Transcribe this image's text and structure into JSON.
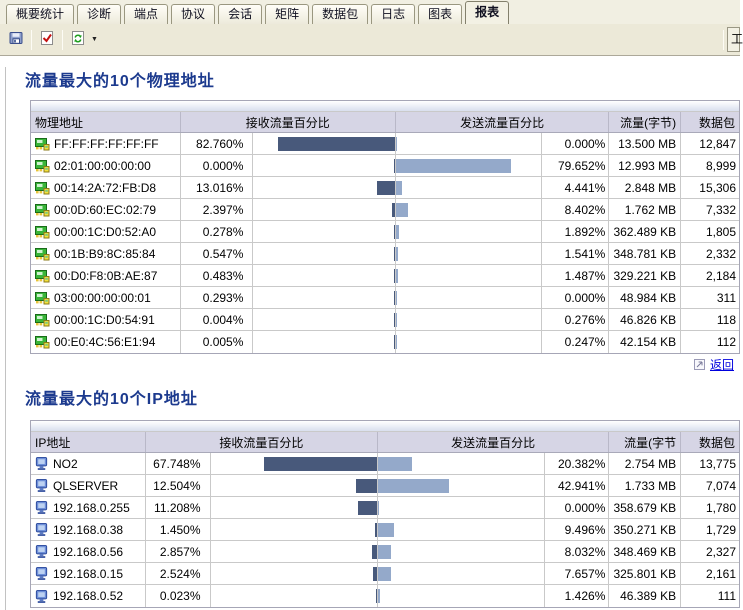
{
  "tabs": [
    {
      "label": "概要统计",
      "name": "summary"
    },
    {
      "label": "诊断",
      "name": "diagnosis"
    },
    {
      "label": "端点",
      "name": "endpoint"
    },
    {
      "label": "协议",
      "name": "protocol"
    },
    {
      "label": "会话",
      "name": "conversation"
    },
    {
      "label": "矩阵",
      "name": "matrix"
    },
    {
      "label": "数据包",
      "name": "packet"
    },
    {
      "label": "日志",
      "name": "log"
    },
    {
      "label": "图表",
      "name": "chart"
    },
    {
      "label": "报表",
      "name": "report"
    }
  ],
  "active_tab": "report",
  "toolbar": {
    "buttons": [
      {
        "name": "save-report-button",
        "icon": "save-icon"
      },
      {
        "name": "check-report-button",
        "icon": "check-icon"
      },
      {
        "name": "refresh-report-button",
        "icon": "refresh-icon",
        "has_dropdown": true
      }
    ],
    "overflow_button_label": "工"
  },
  "colors": {
    "recv_bar": "#48597B",
    "send_bar": "#94A9CA",
    "section_title": "#1C3A8E",
    "header_bg": "#D6D5E5",
    "toolbar_bg": "#ECE9D8"
  },
  "sections": [
    {
      "title": "流量最大的10个物理地址",
      "row_icon": "nic-icon",
      "columns": {
        "address": "物理地址",
        "recv": "接收流量百分比",
        "send": "发送流量百分比",
        "traffic": "流量(字节)",
        "packets": "数据包"
      },
      "rows": [
        {
          "address": "FF:FF:FF:FF:FF:FF",
          "recv": "82.760%",
          "send": "0.000%",
          "traffic": "13.500 MB",
          "packets": "12,847"
        },
        {
          "address": "02:01:00:00:00:00",
          "recv": "0.000%",
          "send": "79.652%",
          "traffic": "12.993 MB",
          "packets": "8,999"
        },
        {
          "address": "00:14:2A:72:FB:D8",
          "recv": "13.016%",
          "send": "4.441%",
          "traffic": "2.848 MB",
          "packets": "15,306"
        },
        {
          "address": "00:0D:60:EC:02:79",
          "recv": "2.397%",
          "send": "8.402%",
          "traffic": "1.762 MB",
          "packets": "7,332"
        },
        {
          "address": "00:00:1C:D0:52:A0",
          "recv": "0.278%",
          "send": "1.892%",
          "traffic": "362.489 KB",
          "packets": "1,805"
        },
        {
          "address": "00:1B:B9:8C:85:84",
          "recv": "0.547%",
          "send": "1.541%",
          "traffic": "348.781 KB",
          "packets": "2,332"
        },
        {
          "address": "00:D0:F8:0B:AE:87",
          "recv": "0.483%",
          "send": "1.487%",
          "traffic": "329.221 KB",
          "packets": "2,184"
        },
        {
          "address": "03:00:00:00:00:01",
          "recv": "0.293%",
          "send": "0.000%",
          "traffic": "48.984 KB",
          "packets": "311"
        },
        {
          "address": "00:00:1C:D0:54:91",
          "recv": "0.004%",
          "send": "0.276%",
          "traffic": "46.826 KB",
          "packets": "118"
        },
        {
          "address": "00:E0:4C:56:E1:94",
          "recv": "0.005%",
          "send": "0.247%",
          "traffic": "42.154 KB",
          "packets": "112"
        }
      ],
      "footer": {
        "icon": "corner-icon",
        "link_label": "返回"
      }
    },
    {
      "title": "流量最大的10个IP地址",
      "row_icon": "host-icon",
      "columns": {
        "address": "IP地址",
        "recv": "接收流量百分比",
        "send": "发送流量百分比",
        "traffic": "流量(字节",
        "packets": "数据包"
      },
      "rows": [
        {
          "address": "NO2",
          "recv": "67.748%",
          "send": "20.382%",
          "traffic": "2.754 MB",
          "packets": "13,775"
        },
        {
          "address": "QLSERVER",
          "recv": "12.504%",
          "send": "42.941%",
          "traffic": "1.733 MB",
          "packets": "7,074"
        },
        {
          "address": "192.168.0.255",
          "recv": "11.208%",
          "send": "0.000%",
          "traffic": "358.679 KB",
          "packets": "1,780"
        },
        {
          "address": "192.168.0.38",
          "recv": "1.450%",
          "send": "9.496%",
          "traffic": "350.271 KB",
          "packets": "1,729"
        },
        {
          "address": "192.168.0.56",
          "recv": "2.857%",
          "send": "8.032%",
          "traffic": "348.469 KB",
          "packets": "2,327"
        },
        {
          "address": "192.168.0.15",
          "recv": "2.524%",
          "send": "7.657%",
          "traffic": "325.801 KB",
          "packets": "2,161"
        },
        {
          "address": "192.168.0.52",
          "recv": "0.023%",
          "send": "1.426%",
          "traffic": "46.389 KB",
          "packets": "111"
        }
      ]
    }
  ]
}
